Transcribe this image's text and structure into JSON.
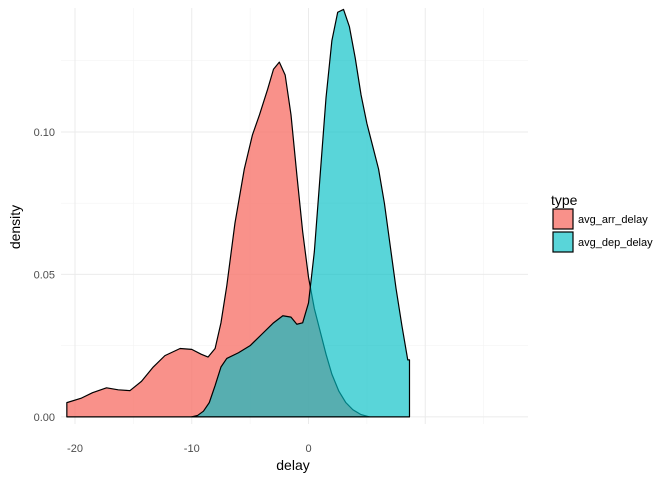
{
  "chart_data": {
    "type": "area",
    "xlabel": "delay",
    "ylabel": "density",
    "xlim": [
      -21.2,
      18.8
    ],
    "ylim": [
      -0.0025,
      0.1435
    ],
    "x_ticks": [
      -20,
      -10,
      0
    ],
    "y_ticks": [
      0.0,
      0.05,
      0.1
    ],
    "x_tick_labels": [
      "-20",
      "-10",
      "0"
    ],
    "y_tick_labels": [
      "0.00",
      "0.05",
      "0.10"
    ],
    "grid": true,
    "legend": {
      "title": "type",
      "position": "right"
    },
    "series": [
      {
        "name": "avg_arr_delay",
        "color": "#F8766D",
        "opacity": 0.8,
        "points": [
          [
            -20.7,
            0.005
          ],
          [
            -19.5,
            0.0065
          ],
          [
            -18.5,
            0.0085
          ],
          [
            -17.3,
            0.0102
          ],
          [
            -16.3,
            0.0095
          ],
          [
            -15.3,
            0.0092
          ],
          [
            -14.3,
            0.0125
          ],
          [
            -13.3,
            0.0175
          ],
          [
            -12.3,
            0.0215
          ],
          [
            -11.0,
            0.024
          ],
          [
            -10.0,
            0.0237
          ],
          [
            -9.2,
            0.022
          ],
          [
            -8.6,
            0.021
          ],
          [
            -8.0,
            0.024
          ],
          [
            -7.5,
            0.033
          ],
          [
            -7.0,
            0.046
          ],
          [
            -6.3,
            0.068
          ],
          [
            -5.5,
            0.087
          ],
          [
            -4.8,
            0.099
          ],
          [
            -4.2,
            0.106
          ],
          [
            -3.5,
            0.115
          ],
          [
            -3.0,
            0.122
          ],
          [
            -2.5,
            0.1245
          ],
          [
            -2.0,
            0.12
          ],
          [
            -1.5,
            0.106
          ],
          [
            -1.0,
            0.085
          ],
          [
            -0.5,
            0.065
          ],
          [
            0.0,
            0.049
          ],
          [
            0.5,
            0.038
          ],
          [
            1.0,
            0.03
          ],
          [
            1.5,
            0.022
          ],
          [
            2.0,
            0.015
          ],
          [
            2.6,
            0.009
          ],
          [
            3.2,
            0.005
          ],
          [
            3.8,
            0.0025
          ],
          [
            4.5,
            0.0008
          ],
          [
            5.2,
            0.0
          ]
        ]
      },
      {
        "name": "avg_dep_delay",
        "color": "#00BFC4",
        "opacity": 0.65,
        "points": [
          [
            -10.0,
            0.0
          ],
          [
            -9.5,
            0.0005
          ],
          [
            -9.0,
            0.002
          ],
          [
            -8.5,
            0.005
          ],
          [
            -8.0,
            0.011
          ],
          [
            -7.5,
            0.0175
          ],
          [
            -7.0,
            0.0205
          ],
          [
            -6.0,
            0.0225
          ],
          [
            -5.0,
            0.025
          ],
          [
            -4.0,
            0.029
          ],
          [
            -3.0,
            0.033
          ],
          [
            -2.2,
            0.0355
          ],
          [
            -1.5,
            0.035
          ],
          [
            -1.0,
            0.0325
          ],
          [
            -0.5,
            0.033
          ],
          [
            0.0,
            0.04
          ],
          [
            0.5,
            0.058
          ],
          [
            1.0,
            0.085
          ],
          [
            1.5,
            0.112
          ],
          [
            2.0,
            0.132
          ],
          [
            2.5,
            0.142
          ],
          [
            3.0,
            0.143
          ],
          [
            3.5,
            0.137
          ],
          [
            4.0,
            0.126
          ],
          [
            4.5,
            0.113
          ],
          [
            5.0,
            0.103
          ],
          [
            5.5,
            0.095
          ],
          [
            6.0,
            0.087
          ],
          [
            6.5,
            0.075
          ],
          [
            7.0,
            0.06
          ],
          [
            7.5,
            0.045
          ],
          [
            8.0,
            0.032
          ],
          [
            8.5,
            0.02
          ],
          [
            8.65,
            0.02
          ],
          [
            8.65,
            0.0
          ]
        ]
      }
    ]
  }
}
